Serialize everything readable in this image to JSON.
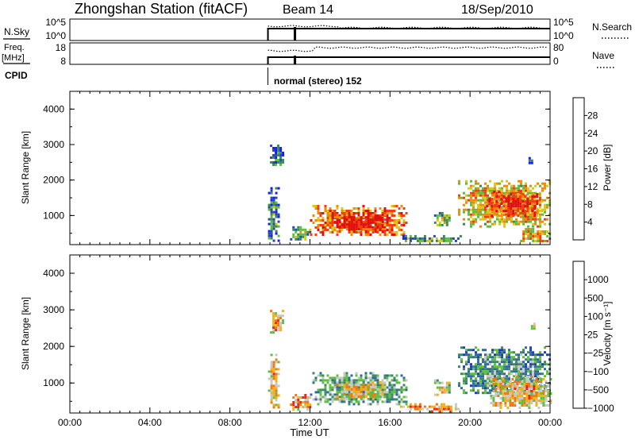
{
  "header": {
    "station": "Zhongshan Station (fitACF)",
    "beam": "Beam 14",
    "date": "18/Sep/2010"
  },
  "status_panels": {
    "nsky_label": "N.Sky",
    "nsky_ticks": [
      "10^5",
      "10^0"
    ],
    "nsearch_label": "N.Search",
    "nsearch_ticks": [
      "10^5",
      "10^0"
    ],
    "freq_label": "Freq.",
    "freq_unit": "[MHz]",
    "freq_ticks": [
      "18",
      "8"
    ],
    "nave_label": "Nave",
    "nave_ticks": [
      "80",
      "0"
    ],
    "cpid_label": "CPID",
    "cpid_value": "normal (stereo) 152",
    "data_start_hour": 9.9,
    "gap_hour": 11.25
  },
  "chart_data": [
    {
      "type": "heatmap",
      "ylabel": "Slant Range [km]",
      "yticks": [
        "4000",
        "3000",
        "2000",
        "1000"
      ],
      "ylim": [
        180,
        4500
      ],
      "xlim": [
        0,
        24
      ],
      "colorbar_label": "Power [dB]",
      "colorbar_ticks": [
        "28",
        "24",
        "20",
        "16",
        "12",
        "8",
        "4"
      ],
      "colorbar_range": [
        0,
        32
      ],
      "colors": [
        "#1a1aff",
        "#2a4aa8",
        "#3b8a5a",
        "#5bbf3c",
        "#d8c81a",
        "#f08a0a",
        "#ee4010",
        "#e01010"
      ],
      "patches": [
        {
          "hours": [
            12.0,
            16.8
          ],
          "range_km": [
            450,
            1300
          ],
          "level": 0.72
        },
        {
          "hours": [
            13.2,
            15.8
          ],
          "range_km": [
            550,
            1050
          ],
          "level": 0.85
        },
        {
          "hours": [
            11.0,
            12.0
          ],
          "range_km": [
            300,
            700
          ],
          "level": 0.35
        },
        {
          "hours": [
            16.5,
            19.5
          ],
          "range_km": [
            250,
            450
          ],
          "level": 0.3
        },
        {
          "hours": [
            19.4,
            24.0
          ],
          "range_km": [
            700,
            2000
          ],
          "level": 0.55
        },
        {
          "hours": [
            20.8,
            23.6
          ],
          "range_km": [
            1000,
            1700
          ],
          "level": 0.75
        },
        {
          "hours": [
            22.5,
            24.0
          ],
          "range_km": [
            250,
            650
          ],
          "level": 0.55
        },
        {
          "hours": [
            9.9,
            10.4
          ],
          "range_km": [
            300,
            1800
          ],
          "level": 0.2
        },
        {
          "hours": [
            18.2,
            19.0
          ],
          "range_km": [
            700,
            1100
          ],
          "level": 0.35
        },
        {
          "hours": [
            10.0,
            10.6
          ],
          "range_km": [
            2400,
            3000
          ],
          "level": 0.15
        },
        {
          "hours": [
            22.8,
            23.2
          ],
          "range_km": [
            2500,
            2650
          ],
          "level": 0.15
        }
      ]
    },
    {
      "type": "heatmap",
      "ylabel": "Slant Range [km]",
      "yticks": [
        "4000",
        "3000",
        "2000",
        "1000"
      ],
      "ylim": [
        180,
        4500
      ],
      "xlim": [
        0,
        24
      ],
      "xticks": [
        "00:00",
        "04:00",
        "08:00",
        "12:00",
        "16:00",
        "20:00",
        "00:00"
      ],
      "xlabel": "Time UT",
      "colorbar_label": "Velocity [m s⁻¹]",
      "colorbar_ticks": [
        "1000",
        "500",
        "100",
        "25",
        "−25",
        "−100",
        "−500",
        "−1000"
      ],
      "colorbar_range": [
        -1500,
        1500
      ],
      "colors": [
        "#1f3fbf",
        "#2f6aa0",
        "#3c8a6a",
        "#5fc040",
        "#c8c8c8",
        "#f0b020",
        "#f07a10",
        "#e82810"
      ],
      "patches": [
        {
          "hours": [
            12.0,
            16.8
          ],
          "range_km": [
            450,
            1300
          ],
          "level": 0.35
        },
        {
          "hours": [
            13.2,
            15.8
          ],
          "range_km": [
            550,
            1050
          ],
          "level": 0.55
        },
        {
          "hours": [
            11.0,
            12.0
          ],
          "range_km": [
            300,
            700
          ],
          "level": 0.7
        },
        {
          "hours": [
            16.5,
            19.5
          ],
          "range_km": [
            250,
            450
          ],
          "level": 0.7
        },
        {
          "hours": [
            19.4,
            24.0
          ],
          "range_km": [
            700,
            2000
          ],
          "level": 0.25
        },
        {
          "hours": [
            21.0,
            24.0
          ],
          "range_km": [
            350,
            1200
          ],
          "level": 0.6
        },
        {
          "hours": [
            9.9,
            10.4
          ],
          "range_km": [
            300,
            1800
          ],
          "level": 0.6
        },
        {
          "hours": [
            18.2,
            19.0
          ],
          "range_km": [
            700,
            1100
          ],
          "level": 0.5
        },
        {
          "hours": [
            10.0,
            10.6
          ],
          "range_km": [
            2400,
            3000
          ],
          "level": 0.65
        },
        {
          "hours": [
            22.8,
            23.2
          ],
          "range_km": [
            2500,
            2650
          ],
          "level": 0.45
        }
      ]
    }
  ]
}
